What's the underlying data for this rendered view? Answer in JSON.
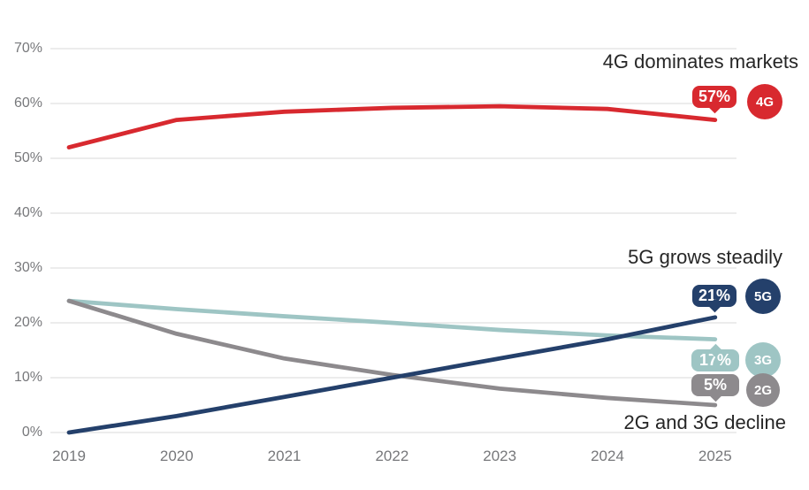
{
  "chart_data": {
    "type": "line",
    "title": "",
    "xlabel": "",
    "ylabel": "",
    "x": [
      2019,
      2020,
      2021,
      2022,
      2023,
      2024,
      2025
    ],
    "x_labels": [
      "2019",
      "2020",
      "2021",
      "2022",
      "2023",
      "2024",
      "2025"
    ],
    "y_ticks": [
      "70%",
      "60%",
      "50%",
      "40%",
      "30%",
      "20%",
      "10%",
      "0%"
    ],
    "ylim": [
      0,
      70
    ],
    "grid": true,
    "legend_position": "right-end-badges",
    "series": [
      {
        "name": "4G",
        "color": "#d8292f",
        "values": [
          52,
          57,
          58.5,
          59.2,
          59.5,
          59,
          57
        ],
        "end_label": "57%",
        "badge": "4G"
      },
      {
        "name": "5G",
        "color": "#24406b",
        "values": [
          0,
          3,
          6.5,
          10,
          13.5,
          17,
          21
        ],
        "end_label": "21%",
        "badge": "5G"
      },
      {
        "name": "3G",
        "color": "#9ec5c4",
        "values": [
          24,
          22.5,
          21.2,
          20,
          18.7,
          17.7,
          17
        ],
        "end_label": "17%",
        "badge": "3G"
      },
      {
        "name": "2G",
        "color": "#8d8a8d",
        "values": [
          24,
          18,
          13.5,
          10.5,
          8,
          6.3,
          5
        ],
        "end_label": "5%",
        "badge": "2G"
      }
    ],
    "annotations": [
      {
        "text": "4G dominates markets"
      },
      {
        "text": "5G grows steadily"
      },
      {
        "text": "2G and 3G decline"
      }
    ]
  },
  "colors": {
    "grid": "#d9d9d9",
    "axis_text": "#77787b",
    "annotation_text": "#262626",
    "background": "#ffffff"
  }
}
